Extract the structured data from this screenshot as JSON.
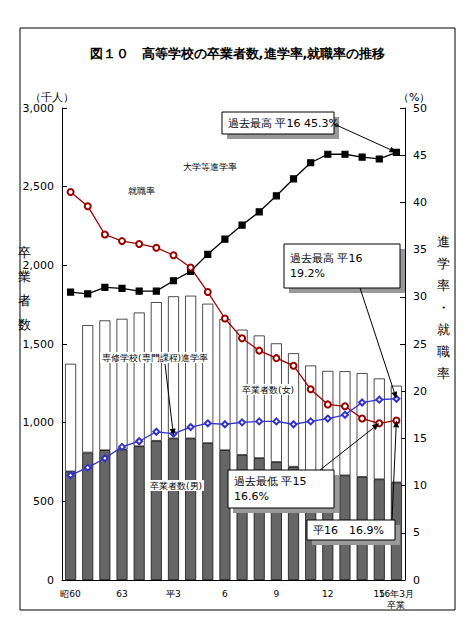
{
  "chart_data": {
    "type": "bar",
    "title": "図１０　高等学校の卒業者数,進学率,就職率の推移",
    "y_unit": "（千人）",
    "y2_unit": "（%）",
    "ylabel": "卒業者数",
    "y2label": "進学率・就職率",
    "categories": [
      "昭60",
      null,
      null,
      "63",
      null,
      null,
      "平3",
      null,
      null,
      "6",
      null,
      null,
      "9",
      null,
      null,
      "12",
      null,
      null,
      "15",
      "16年3月\n卒業"
    ],
    "stacked": true,
    "grid": false,
    "ylim": [
      0,
      3000
    ],
    "yticks": [
      0,
      500,
      1000,
      1500,
      2000,
      2500,
      3000
    ],
    "y2lim": [
      0,
      50
    ],
    "y2ticks": [
      0,
      5,
      10,
      15,
      20,
      25,
      30,
      35,
      40,
      45,
      50
    ],
    "series": [
      {
        "name": "卒業者数(男)",
        "type": "bar",
        "color": "#666666",
        "values": [
          690,
          810,
          825,
          830,
          850,
          885,
          900,
          900,
          870,
          825,
          795,
          775,
          750,
          720,
          680,
          665,
          665,
          655,
          640,
          620
        ]
      },
      {
        "name": "卒業者数(女)",
        "type": "bar",
        "color": "#ffffff",
        "values": [
          684,
          810,
          825,
          830,
          850,
          881,
          903,
          907,
          886,
          834,
          796,
          779,
          754,
          721,
          683,
          664,
          662,
          660,
          641,
          615
        ]
      },
      {
        "name": "大学等進学率",
        "type": "line",
        "axis": "y2",
        "color": "#000000",
        "marker": "square",
        "line_style": "solid",
        "values": [
          30.5,
          30.3,
          31.0,
          30.9,
          30.6,
          30.6,
          31.7,
          32.7,
          34.5,
          36.1,
          37.6,
          39.0,
          40.7,
          42.5,
          44.2,
          45.1,
          45.1,
          44.8,
          44.6,
          45.3
        ]
      },
      {
        "name": "就職率",
        "type": "line",
        "axis": "y2",
        "color": "#990000",
        "marker": "circle_open",
        "line_style": "solid",
        "values": [
          41.1,
          39.6,
          36.6,
          35.9,
          35.6,
          35.2,
          34.4,
          33.1,
          30.5,
          27.7,
          25.6,
          24.3,
          23.5,
          22.7,
          20.2,
          18.6,
          18.4,
          17.1,
          16.6,
          16.9
        ]
      },
      {
        "name": "専修学校(専門課程)進学率",
        "type": "line",
        "axis": "y2",
        "color": "#3333cc",
        "marker": "diamond_open",
        "line_style": "solid",
        "values": [
          11.1,
          11.9,
          12.9,
          14.1,
          14.7,
          15.7,
          15.5,
          16.2,
          16.6,
          16.5,
          16.7,
          16.8,
          16.8,
          16.5,
          16.8,
          17.1,
          17.5,
          18.8,
          19.1,
          19.2
        ]
      }
    ],
    "annotations": [
      "過去最高 平16 45.3%",
      "過去最高 平16\n19.2%",
      "過去最低 平15\n16.6%",
      "平16　16.9%"
    ]
  }
}
